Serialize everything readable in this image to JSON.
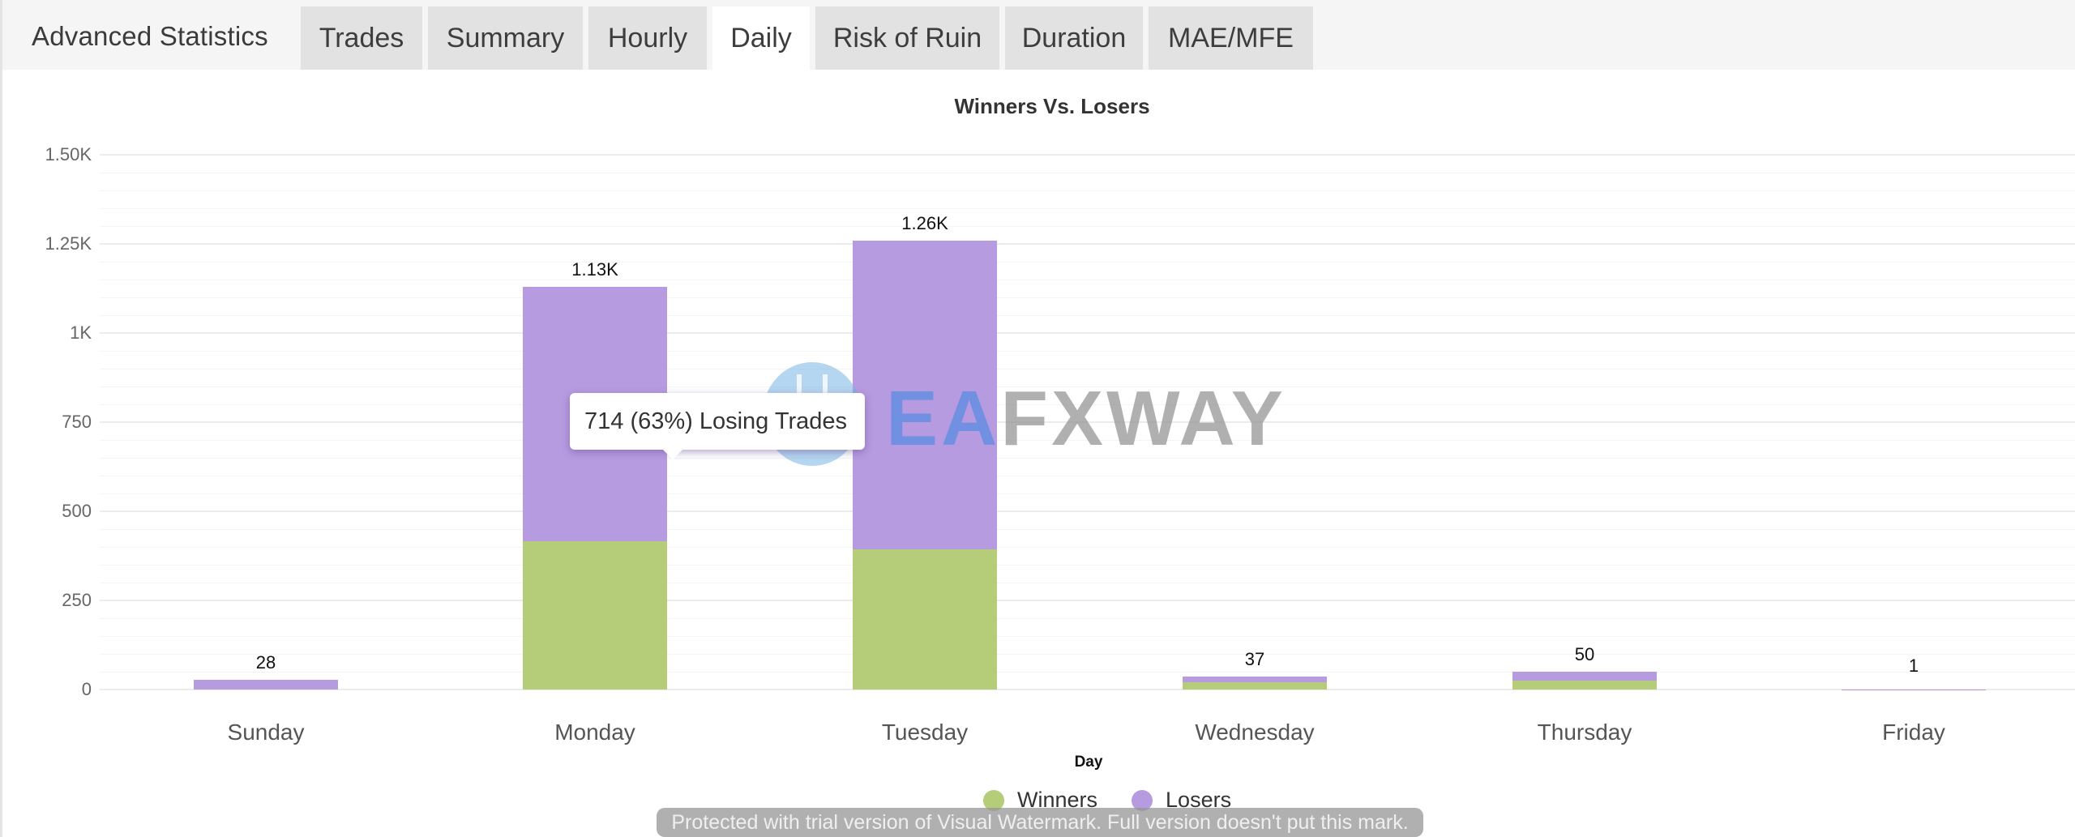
{
  "header": {
    "title": "Advanced Statistics",
    "tabs": [
      {
        "label": "Trades",
        "active": false
      },
      {
        "label": "Summary",
        "active": false
      },
      {
        "label": "Hourly",
        "active": false
      },
      {
        "label": "Daily",
        "active": true
      },
      {
        "label": "Risk of Ruin",
        "active": false
      },
      {
        "label": "Duration",
        "active": false
      },
      {
        "label": "MAE/MFE",
        "active": false
      }
    ]
  },
  "colors": {
    "winners": "#b5cc78",
    "losers": "#b79be0"
  },
  "chart_data": {
    "type": "bar",
    "stacked": true,
    "title": "Winners Vs. Losers",
    "xlabel": "Day",
    "ylabel": "",
    "categories": [
      "Sunday",
      "Monday",
      "Tuesday",
      "Wednesday",
      "Thursday",
      "Friday"
    ],
    "series": [
      {
        "name": "Winners",
        "values": [
          0,
          416,
          393,
          20,
          25,
          0
        ]
      },
      {
        "name": "Losers",
        "values": [
          28,
          714,
          867,
          17,
          25,
          1
        ]
      }
    ],
    "totals": [
      28,
      1130,
      1260,
      37,
      50,
      1
    ],
    "total_labels": [
      "28",
      "1.13K",
      "1.26K",
      "37",
      "50",
      "1"
    ],
    "ylim": [
      0,
      1500
    ],
    "yticks": [
      0,
      250,
      500,
      750,
      1000,
      1250,
      1500
    ],
    "ytick_labels": [
      "0",
      "250",
      "500",
      "750",
      "1K",
      "1.25K",
      "1.50K"
    ],
    "grid": true,
    "legend_position": "bottom",
    "tooltip": {
      "text": "714 (63%) Losing Trades",
      "category": "Monday",
      "series": "Losers"
    }
  },
  "legend": [
    {
      "label": "Winners"
    },
    {
      "label": "Losers"
    }
  ],
  "watermark": {
    "logo_text_ea": "EA",
    "logo_text_rest": "FXWAY",
    "trial_notice": "Protected with trial version of Visual Watermark. Full version doesn't put this mark."
  }
}
